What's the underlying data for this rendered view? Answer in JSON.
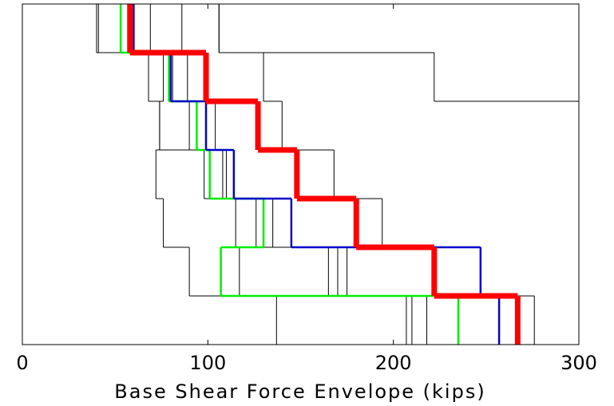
{
  "chart_data": {
    "type": "step",
    "xlabel": "Base Shear Force Envelope (kips)",
    "categories": [
      null,
      null,
      null,
      null,
      null,
      null,
      null
    ],
    "xlim": [
      0,
      300
    ],
    "xticks": [
      0,
      100,
      200,
      300
    ],
    "ylim": [
      0,
      7
    ],
    "series": [
      {
        "color": "#000000",
        "values": [
          137,
          90,
          76,
          72,
          74,
          68,
          40
        ]
      },
      {
        "color": "#000000",
        "values": [
          207,
          117,
          115,
          98,
          74,
          76,
          41
        ]
      },
      {
        "color": "#000000",
        "values": [
          210,
          165,
          126,
          108,
          90,
          81,
          69
        ]
      },
      {
        "color": "#000000",
        "values": [
          218,
          170,
          135,
          110,
          104,
          89,
          86
        ]
      },
      {
        "color": "#000000",
        "values": [
          276,
          175,
          194,
          168,
          140,
          130,
          106
        ]
      },
      {
        "color": "#000000",
        "values": [
          320,
          320,
          320,
          320,
          320,
          222,
          106
        ]
      },
      {
        "color": "#00ee00",
        "values": [
          235,
          107,
          130,
          101,
          94,
          79,
          53
        ]
      },
      {
        "color": "#0000cc",
        "values": [
          257,
          247,
          145,
          114,
          99,
          80,
          60
        ]
      },
      {
        "color": "#ff0000",
        "values": [
          267,
          222,
          180,
          148,
          127,
          99,
          58
        ]
      }
    ]
  }
}
